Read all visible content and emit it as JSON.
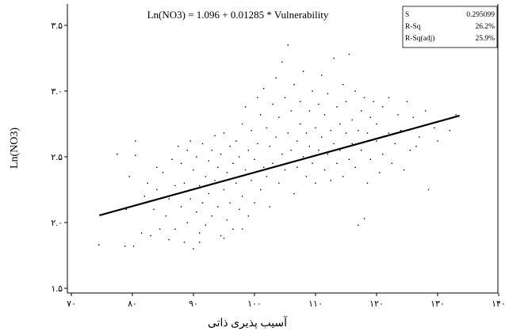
{
  "chart_data": {
    "type": "scatter",
    "title": "Ln(NO3) = 1.096 + 0.01285 * Vulnerability",
    "xlabel": "آسیب پذیری ذاتی",
    "ylabel": "Ln(NO3)",
    "xlim": [
      70,
      140
    ],
    "ylim": [
      1.5,
      3.5
    ],
    "x_ticks": [
      70,
      80,
      90,
      100,
      110,
      120,
      130,
      140
    ],
    "x_tick_labels": [
      "۷۰",
      "۸۰",
      "۹۰",
      "۱۰۰",
      "۱۱۰",
      "۱۲۰",
      "۱۳۰",
      "۱۴۰"
    ],
    "y_ticks": [
      1.5,
      2.0,
      2.5,
      3.0,
      3.5
    ],
    "y_tick_labels": [
      "۱.۵",
      "۲.۰",
      "۲.۵",
      "۳.۰",
      "۳.۵"
    ],
    "grid": false,
    "fit_line": {
      "intercept": 1.096,
      "slope": 0.01285,
      "x_range": [
        74.6,
        133.6
      ]
    },
    "stats": [
      {
        "label": "S",
        "value": "0.295099"
      },
      {
        "label": "R-Sq",
        "value": "26.2%"
      },
      {
        "label": "R-Sq(adj)",
        "value": "25.9%"
      }
    ],
    "points": [
      [
        74.5,
        1.83
      ],
      [
        77.5,
        2.52
      ],
      [
        78.8,
        1.82
      ],
      [
        79.5,
        2.35
      ],
      [
        80.2,
        1.82
      ],
      [
        80.5,
        2.51
      ],
      [
        81.5,
        1.92
      ],
      [
        82.0,
        2.2
      ],
      [
        83.0,
        1.9
      ],
      [
        83.5,
        2.1
      ],
      [
        84.0,
        2.25
      ],
      [
        84.5,
        1.95
      ],
      [
        85.0,
        2.38
      ],
      [
        85.5,
        2.05
      ],
      [
        86.0,
        1.87
      ],
      [
        86.5,
        2.48
      ],
      [
        87.0,
        1.95
      ],
      [
        87.0,
        2.28
      ],
      [
        87.5,
        2.58
      ],
      [
        88.0,
        2.12
      ],
      [
        88.0,
        2.45
      ],
      [
        88.5,
        1.85
      ],
      [
        88.5,
        2.3
      ],
      [
        89.0,
        2.0
      ],
      [
        89.0,
        2.55
      ],
      [
        89.5,
        2.18
      ],
      [
        89.5,
        2.62
      ],
      [
        90.0,
        1.8
      ],
      [
        90.0,
        2.4
      ],
      [
        90.5,
        2.08
      ],
      [
        90.5,
        2.5
      ],
      [
        91.0,
        1.92
      ],
      [
        91.0,
        2.28
      ],
      [
        91.5,
        2.6
      ],
      [
        91.5,
        2.15
      ],
      [
        92.0,
        2.35
      ],
      [
        92.0,
        1.98
      ],
      [
        92.5,
        2.47
      ],
      [
        92.5,
        2.22
      ],
      [
        93.0,
        2.55
      ],
      [
        93.0,
        2.05
      ],
      [
        93.5,
        2.32
      ],
      [
        93.5,
        2.66
      ],
      [
        94.0,
        2.12
      ],
      [
        94.0,
        2.42
      ],
      [
        94.5,
        1.9
      ],
      [
        94.5,
        2.52
      ],
      [
        95.0,
        2.25
      ],
      [
        95.0,
        2.68
      ],
      [
        95.5,
        2.02
      ],
      [
        95.5,
        2.38
      ],
      [
        96.0,
        2.58
      ],
      [
        96.0,
        2.15
      ],
      [
        96.5,
        2.45
      ],
      [
        96.5,
        1.95
      ],
      [
        97.0,
        2.3
      ],
      [
        97.0,
        2.62
      ],
      [
        97.5,
        2.1
      ],
      [
        97.5,
        2.5
      ],
      [
        98.0,
        2.75
      ],
      [
        98.0,
        2.2
      ],
      [
        98.5,
        2.4
      ],
      [
        98.5,
        2.88
      ],
      [
        99.0,
        2.05
      ],
      [
        99.0,
        2.55
      ],
      [
        99.5,
        2.32
      ],
      [
        99.5,
        2.7
      ],
      [
        100.0,
        2.15
      ],
      [
        100.0,
        2.48
      ],
      [
        100.5,
        2.95
      ],
      [
        100.5,
        2.6
      ],
      [
        101.0,
        2.25
      ],
      [
        101.0,
        2.82
      ],
      [
        101.5,
        2.42
      ],
      [
        101.5,
        3.02
      ],
      [
        102.0,
        2.35
      ],
      [
        102.0,
        2.72
      ],
      [
        102.5,
        2.58
      ],
      [
        102.5,
        2.12
      ],
      [
        103.0,
        2.9
      ],
      [
        103.0,
        2.45
      ],
      [
        103.5,
        3.1
      ],
      [
        103.5,
        2.65
      ],
      [
        104.0,
        2.3
      ],
      [
        104.0,
        2.8
      ],
      [
        104.5,
        2.52
      ],
      [
        104.5,
        3.22
      ],
      [
        105.0,
        2.4
      ],
      [
        105.0,
        2.95
      ],
      [
        105.5,
        2.68
      ],
      [
        105.5,
        3.35
      ],
      [
        106.0,
        2.55
      ],
      [
        106.0,
        2.85
      ],
      [
        106.5,
        2.22
      ],
      [
        106.5,
        3.05
      ],
      [
        107.0,
        2.62
      ],
      [
        107.0,
        2.42
      ],
      [
        107.5,
        2.92
      ],
      [
        107.5,
        2.75
      ],
      [
        108.0,
        2.5
      ],
      [
        108.0,
        3.15
      ],
      [
        108.5,
        2.68
      ],
      [
        108.5,
        2.35
      ],
      [
        109.0,
        2.85
      ],
      [
        109.0,
        2.58
      ],
      [
        109.5,
        3.0
      ],
      [
        109.5,
        2.45
      ],
      [
        110.0,
        2.72
      ],
      [
        110.0,
        2.3
      ],
      [
        110.5,
        2.9
      ],
      [
        110.5,
        2.55
      ],
      [
        111.0,
        2.65
      ],
      [
        111.0,
        3.12
      ],
      [
        111.5,
        2.4
      ],
      [
        111.5,
        2.82
      ],
      [
        112.0,
        2.52
      ],
      [
        112.0,
        2.98
      ],
      [
        112.5,
        2.7
      ],
      [
        112.5,
        2.32
      ],
      [
        113.0,
        2.6
      ],
      [
        113.0,
        3.25
      ],
      [
        113.5,
        2.88
      ],
      [
        113.5,
        2.45
      ],
      [
        114.0,
        2.75
      ],
      [
        114.0,
        2.55
      ],
      [
        114.5,
        3.05
      ],
      [
        114.5,
        2.35
      ],
      [
        115.0,
        2.68
      ],
      [
        115.0,
        2.92
      ],
      [
        115.5,
        2.48
      ],
      [
        115.5,
        3.28
      ],
      [
        116.0,
        2.78
      ],
      [
        116.0,
        2.6
      ],
      [
        116.5,
        2.42
      ],
      [
        116.5,
        3.0
      ],
      [
        117.0,
        2.7
      ],
      [
        117.0,
        1.98
      ],
      [
        117.5,
        2.85
      ],
      [
        117.5,
        2.55
      ],
      [
        118.0,
        2.03
      ],
      [
        118.0,
        2.95
      ],
      [
        118.5,
        2.68
      ],
      [
        119.0,
        2.8
      ],
      [
        119.0,
        2.48
      ],
      [
        119.5,
        2.92
      ],
      [
        120.0,
        2.62
      ],
      [
        120.0,
        2.75
      ],
      [
        121.0,
        2.88
      ],
      [
        121.0,
        2.52
      ],
      [
        122.0,
        2.68
      ],
      [
        122.0,
        2.95
      ],
      [
        123.0,
        2.6
      ],
      [
        123.5,
        2.82
      ],
      [
        124.0,
        2.7
      ],
      [
        125.0,
        2.92
      ],
      [
        125.5,
        2.55
      ],
      [
        126.0,
        2.8
      ],
      [
        127.0,
        2.65
      ],
      [
        128.0,
        2.85
      ],
      [
        128.5,
        2.25
      ],
      [
        129.5,
        2.72
      ],
      [
        130.0,
        2.62
      ],
      [
        131.0,
        2.78
      ],
      [
        132.0,
        2.7
      ],
      [
        133.0,
        2.82
      ],
      [
        124.5,
        2.4
      ],
      [
        126.5,
        2.58
      ],
      [
        122.5,
        2.45
      ],
      [
        120.5,
        2.38
      ],
      [
        118.5,
        2.3
      ],
      [
        95.0,
        1.88
      ],
      [
        91.0,
        1.85
      ],
      [
        98.0,
        1.95
      ],
      [
        86.0,
        2.18
      ],
      [
        84.0,
        2.42
      ],
      [
        82.5,
        2.3
      ],
      [
        79.0,
        2.1
      ],
      [
        80.5,
        2.62
      ]
    ]
  }
}
